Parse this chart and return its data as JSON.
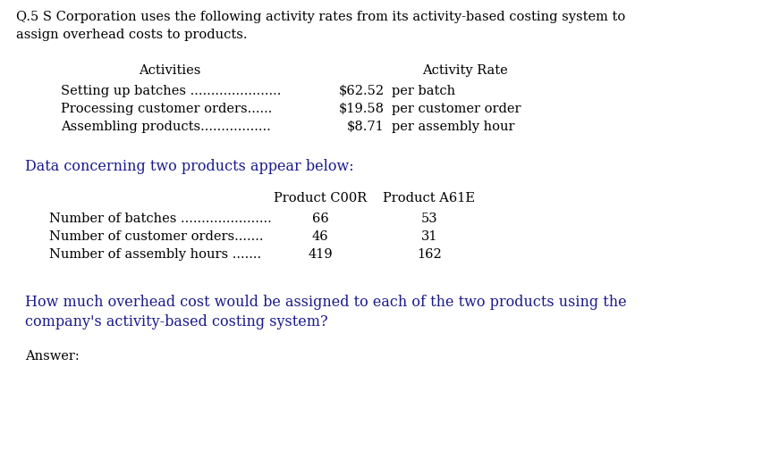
{
  "background_color": "#ffffff",
  "title_line1": "Q.5 S Corporation uses the following activity rates from its activity-based costing system to",
  "title_line2": "assign overhead costs to products.",
  "activities_header": "Activities",
  "activity_rate_header": "Activity Rate",
  "activities": [
    "Setting up batches ......................",
    "Processing customer orders......",
    "Assembling products................."
  ],
  "rates_dollar": [
    "$62.52",
    "$19.58",
    "$8.71"
  ],
  "rates_unit": [
    "per batch",
    "per customer order",
    "per assembly hour"
  ],
  "data_intro": "Data concerning two products appear below:",
  "product_headers": [
    "Product C00R",
    "Product A61E"
  ],
  "data_rows": [
    {
      "label": "Number of batches ......................",
      "c00r": "66",
      "a61e": "53"
    },
    {
      "label": "Number of customer orders.......",
      "c00r": "46",
      "a61e": "31"
    },
    {
      "label": "Number of assembly hours .......",
      "c00r": "419",
      "a61e": "162"
    }
  ],
  "question_line1": "How much overhead cost would be assigned to each of the two products using the",
  "question_line2": "company's activity-based costing system?",
  "answer_label": "Answer:",
  "font_size": 10.5,
  "font_size_question": 11.5,
  "text_color": "#000000",
  "question_color": "#1a1a8c"
}
